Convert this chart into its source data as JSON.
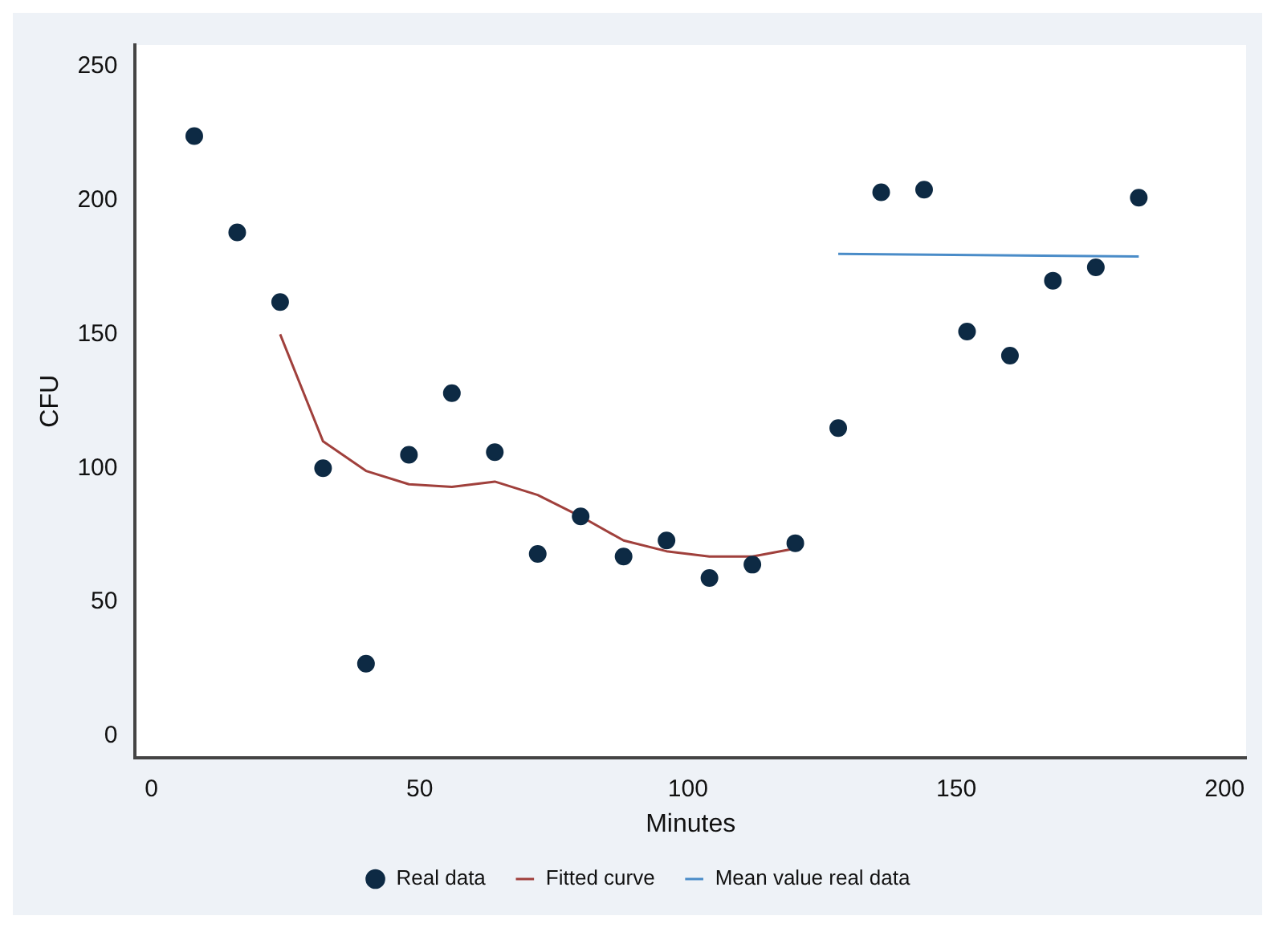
{
  "chart_data": {
    "type": "scatter",
    "xlabel": "Minutes",
    "ylabel": "CFU",
    "xlim": [
      -3,
      204
    ],
    "ylim": [
      -8,
      258
    ],
    "xticks": [
      0,
      50,
      100,
      150,
      200
    ],
    "yticks": [
      0,
      50,
      100,
      150,
      200,
      250
    ],
    "legend": "bottom",
    "series": [
      {
        "name": "Real data",
        "type": "scatter",
        "marker": "circle",
        "color": "#0d2a44",
        "x": [
          8,
          16,
          24,
          32,
          40,
          48,
          56,
          64,
          72,
          80,
          88,
          96,
          104,
          112,
          120,
          128,
          136,
          144,
          152,
          160,
          168,
          176,
          184
        ],
        "values": [
          224,
          188,
          162,
          100,
          27,
          105,
          128,
          106,
          68,
          82,
          67,
          73,
          59,
          64,
          72,
          115,
          203,
          204,
          151,
          142,
          170,
          175,
          201
        ]
      },
      {
        "name": "Fitted curve",
        "type": "line",
        "marker": "none",
        "color": "#a0403c",
        "x": [
          24,
          32,
          40,
          48,
          56,
          64,
          72,
          80,
          88,
          96,
          104,
          112,
          120
        ],
        "values": [
          150,
          110,
          99,
          94,
          93,
          95,
          90,
          82,
          73,
          69,
          67,
          67,
          70
        ]
      },
      {
        "name": "Mean value real data",
        "type": "line",
        "marker": "none",
        "color": "#4a8cc8",
        "x": [
          128,
          184
        ],
        "values": [
          180,
          179
        ]
      }
    ]
  }
}
